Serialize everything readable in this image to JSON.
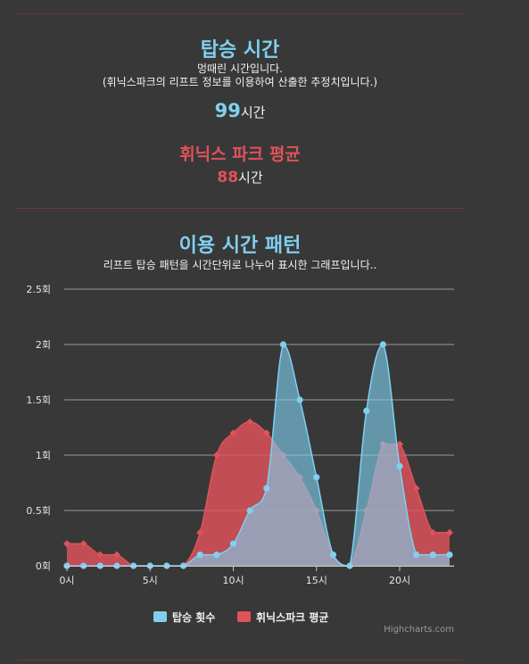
{
  "ride": {
    "title": "탑승 시간",
    "subtitle": "멍때린 시간입니다.",
    "note": "(휘닉스파크의 리프트 정보를 이용하여 산출한 추정치입니다.)",
    "value": "99",
    "unit": "시간"
  },
  "park_avg": {
    "title": "휘닉스 파크 평균",
    "value": "88",
    "unit": "시간"
  },
  "pattern": {
    "title": "이용 시간 패턴",
    "subtitle": "리프트 탑승 패턴을 시간단위로 나누어 표시한 그래프입니다.."
  },
  "credits": "Highcharts.com",
  "chart_data": {
    "type": "area",
    "x": [
      0,
      1,
      2,
      3,
      4,
      5,
      6,
      7,
      8,
      9,
      10,
      11,
      12,
      13,
      14,
      15,
      16,
      17,
      18,
      19,
      20,
      21,
      22,
      23
    ],
    "x_ticks": [
      {
        "value": 0,
        "label": "0시"
      },
      {
        "value": 5,
        "label": "5시"
      },
      {
        "value": 10,
        "label": "10시"
      },
      {
        "value": 15,
        "label": "15시"
      },
      {
        "value": 20,
        "label": "20시"
      }
    ],
    "y_ticks": [
      {
        "value": 0,
        "label": "0회"
      },
      {
        "value": 0.5,
        "label": "0.5회"
      },
      {
        "value": 1,
        "label": "1회"
      },
      {
        "value": 1.5,
        "label": "1.5회"
      },
      {
        "value": 2,
        "label": "2회"
      },
      {
        "value": 2.5,
        "label": "2.5회"
      }
    ],
    "ylim": [
      0,
      2.5
    ],
    "xlim": [
      0,
      23
    ],
    "grid": true,
    "legend_position": "bottom-center",
    "series": [
      {
        "name": "휘닉스파크 평균",
        "color": "#e0525a",
        "values": [
          0.2,
          0.2,
          0.1,
          0.1,
          0,
          0,
          0,
          0,
          0.3,
          1.0,
          1.2,
          1.3,
          1.2,
          1.0,
          0.8,
          0.5,
          0.1,
          0,
          0.5,
          1.1,
          1.1,
          0.7,
          0.3,
          0.3
        ]
      },
      {
        "name": "탑승 횟수",
        "color": "#7fd0f0",
        "values": [
          0,
          0,
          0,
          0,
          0,
          0,
          0,
          0,
          0.1,
          0.1,
          0.2,
          0.5,
          0.7,
          2.0,
          1.5,
          0.8,
          0.1,
          0,
          1.4,
          2.0,
          0.9,
          0.1,
          0.1,
          0.1
        ]
      }
    ]
  }
}
